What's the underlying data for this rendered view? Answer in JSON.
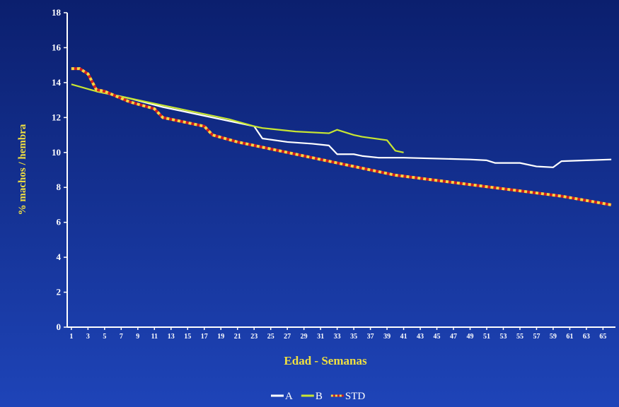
{
  "chart_data": {
    "type": "line",
    "y_label": "% machos / hembra",
    "x_label": "Edad - Semanas",
    "xlim": [
      0.5,
      66.5
    ],
    "xticks": [
      1,
      3,
      5,
      7,
      9,
      11,
      13,
      15,
      17,
      19,
      21,
      23,
      25,
      27,
      29,
      31,
      33,
      35,
      37,
      39,
      41,
      43,
      45,
      47,
      49,
      51,
      53,
      55,
      57,
      59,
      61,
      63,
      65
    ],
    "ylim": [
      0,
      18
    ],
    "yticks": [
      0,
      2,
      4,
      6,
      8,
      10,
      12,
      14,
      16,
      18
    ],
    "series": [
      {
        "name": "A",
        "color": "#ffffff",
        "x": [
          4,
          8,
          12,
          16,
          20,
          23,
          24,
          27,
          30,
          32,
          33,
          35,
          36,
          38,
          41,
          45,
          49,
          51,
          52,
          55,
          57,
          59,
          60,
          63,
          66
        ],
        "values": [
          13.5,
          13.1,
          12.6,
          12.2,
          11.8,
          11.5,
          10.8,
          10.6,
          10.5,
          10.4,
          9.9,
          9.9,
          9.8,
          9.7,
          9.7,
          9.65,
          9.6,
          9.55,
          9.4,
          9.4,
          9.2,
          9.15,
          9.5,
          9.55,
          9.6
        ]
      },
      {
        "name": "B",
        "color": "#c8e632",
        "x": [
          1,
          4,
          8,
          12,
          16,
          20,
          23,
          24,
          28,
          32,
          33,
          35,
          36,
          39,
          40,
          41
        ],
        "values": [
          13.9,
          13.5,
          13.1,
          12.7,
          12.3,
          11.9,
          11.5,
          11.4,
          11.2,
          11.1,
          11.3,
          11.0,
          10.9,
          10.7,
          10.1,
          10.0
        ]
      },
      {
        "name": "STD",
        "color": "#d42020",
        "dash_color": "#f5d742",
        "x": [
          1,
          2,
          3,
          4,
          5,
          8,
          11,
          12,
          17,
          18,
          21,
          23,
          24,
          30,
          40,
          45,
          50,
          55,
          60,
          66
        ],
        "values": [
          14.8,
          14.8,
          14.5,
          13.6,
          13.5,
          12.9,
          12.5,
          12.0,
          11.5,
          11.0,
          10.6,
          10.4,
          10.3,
          9.7,
          8.7,
          8.4,
          8.1,
          7.8,
          7.5,
          7.0
        ]
      }
    ]
  }
}
